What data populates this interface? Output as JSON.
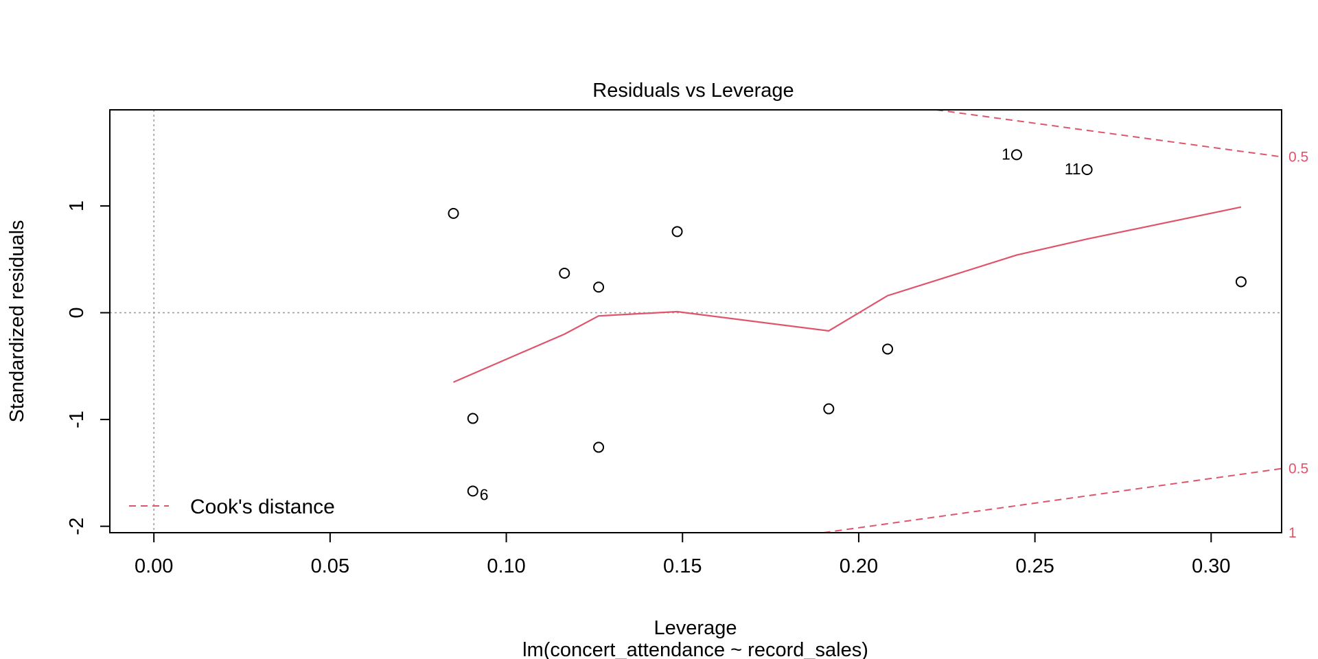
{
  "chart_data": {
    "type": "scatter",
    "title": "Residuals vs Leverage",
    "xlabel": "Leverage",
    "sublabel": "lm(concert_attendance ~ record_sales)",
    "ylabel": "Standardized residuals",
    "xlim": [
      -0.0125,
      0.32
    ],
    "ylim": [
      -2.06,
      1.9
    ],
    "xticks": [
      0.0,
      0.05,
      0.1,
      0.15,
      0.2,
      0.25,
      0.3
    ],
    "xtick_labels": [
      "0.00",
      "0.05",
      "0.10",
      "0.15",
      "0.20",
      "0.25",
      "0.30"
    ],
    "yticks": [
      -2,
      -1,
      0,
      1
    ],
    "ytick_labels": [
      "-2",
      "-1",
      "0",
      "1"
    ],
    "reference_lines": {
      "x": 0,
      "y": 0
    },
    "points": [
      {
        "x": 0.085,
        "y": 0.93,
        "label": ""
      },
      {
        "x": 0.0905,
        "y": -0.99,
        "label": ""
      },
      {
        "x": 0.0905,
        "y": -1.67,
        "label": "6"
      },
      {
        "x": 0.1165,
        "y": 0.37,
        "label": ""
      },
      {
        "x": 0.1262,
        "y": 0.24,
        "label": ""
      },
      {
        "x": 0.1262,
        "y": -1.26,
        "label": ""
      },
      {
        "x": 0.1485,
        "y": 0.76,
        "label": ""
      },
      {
        "x": 0.1915,
        "y": -0.9,
        "label": ""
      },
      {
        "x": 0.2082,
        "y": -0.34,
        "label": ""
      },
      {
        "x": 0.2448,
        "y": 1.48,
        "label": "1"
      },
      {
        "x": 0.2648,
        "y": 1.34,
        "label": "11"
      },
      {
        "x": 0.3085,
        "y": 0.29,
        "label": ""
      }
    ],
    "smooth_line": {
      "x": [
        0.085,
        0.1165,
        0.1262,
        0.1485,
        0.1915,
        0.2082,
        0.2448,
        0.2648,
        0.3085
      ],
      "y": [
        -0.65,
        -0.2,
        -0.03,
        0.01,
        -0.17,
        0.16,
        0.54,
        0.69,
        0.99
      ],
      "color": "#DF536B"
    },
    "cooks_distance": {
      "color": "#DF536B",
      "upper_05": {
        "x": [
          0.222,
          0.32
        ],
        "y": [
          1.9,
          1.46
        ]
      },
      "lower_05": {
        "x": [
          0.19,
          0.32
        ],
        "y": [
          -2.06,
          -1.46
        ]
      },
      "right_labels": [
        {
          "text": "0.5",
          "y": 1.46
        },
        {
          "text": "0.5",
          "y": -1.46
        },
        {
          "text": "1",
          "y": -2.06
        }
      ]
    },
    "legend": {
      "position": "bottom-left",
      "entries": [
        "Cook's distance"
      ]
    }
  }
}
